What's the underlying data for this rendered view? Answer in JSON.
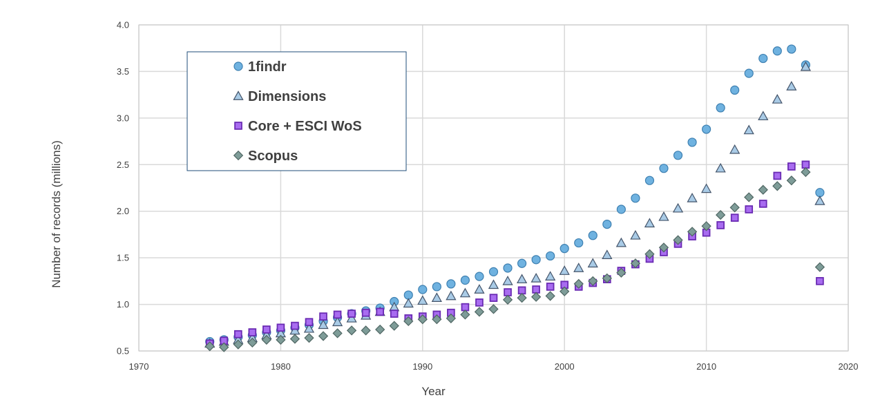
{
  "chart_data": {
    "type": "scatter",
    "xlabel": "Year",
    "ylabel": "Number of records (millions)",
    "xlim": [
      1970,
      2020
    ],
    "ylim": [
      0.5,
      4.0
    ],
    "xticks": [
      "1970",
      "1980",
      "1990",
      "2000",
      "2010",
      "2020"
    ],
    "yticks": [
      "0.5",
      "1.0",
      "1.5",
      "2.0",
      "2.5",
      "3.0",
      "3.5",
      "4.0"
    ],
    "grid": true,
    "legend_position": "top-left",
    "x": [
      1975,
      1976,
      1977,
      1978,
      1979,
      1980,
      1981,
      1982,
      1983,
      1984,
      1985,
      1986,
      1987,
      1988,
      1989,
      1990,
      1991,
      1992,
      1993,
      1994,
      1995,
      1996,
      1997,
      1998,
      1999,
      2000,
      2001,
      2002,
      2003,
      2004,
      2005,
      2006,
      2007,
      2008,
      2009,
      2010,
      2011,
      2012,
      2013,
      2014,
      2015,
      2016,
      2017,
      2018
    ],
    "series": [
      {
        "name": "1findr",
        "marker": "circle",
        "color": "#6fb2e0",
        "stroke": "#3d7fb0",
        "values": [
          0.6,
          0.62,
          0.65,
          0.67,
          0.7,
          0.72,
          0.75,
          0.78,
          0.82,
          0.86,
          0.9,
          0.93,
          0.96,
          1.03,
          1.1,
          1.16,
          1.19,
          1.22,
          1.26,
          1.3,
          1.35,
          1.39,
          1.44,
          1.48,
          1.52,
          1.6,
          1.66,
          1.74,
          1.86,
          2.02,
          2.14,
          2.33,
          2.46,
          2.6,
          2.74,
          2.88,
          3.11,
          3.3,
          3.48,
          3.64,
          3.72,
          3.74,
          3.57,
          2.2
        ]
      },
      {
        "name": "Dimensions",
        "marker": "triangle",
        "color": "#a9cbe6",
        "stroke": "#44546a",
        "values": [
          0.58,
          0.6,
          0.62,
          0.64,
          0.67,
          0.69,
          0.72,
          0.74,
          0.78,
          0.81,
          0.85,
          0.88,
          0.92,
          0.97,
          1.01,
          1.04,
          1.07,
          1.09,
          1.12,
          1.16,
          1.21,
          1.25,
          1.27,
          1.28,
          1.3,
          1.36,
          1.39,
          1.44,
          1.53,
          1.66,
          1.74,
          1.87,
          1.94,
          2.03,
          2.14,
          2.24,
          2.46,
          2.66,
          2.87,
          3.02,
          3.2,
          3.34,
          3.55,
          2.11
        ]
      },
      {
        "name": "Core + ESCI WoS",
        "marker": "square",
        "color": "#a86cf0",
        "stroke": "#6a2bb3",
        "values": [
          0.58,
          0.61,
          0.68,
          0.7,
          0.73,
          0.75,
          0.77,
          0.81,
          0.87,
          0.89,
          0.9,
          0.91,
          0.92,
          0.9,
          0.85,
          0.87,
          0.89,
          0.91,
          0.97,
          1.02,
          1.07,
          1.13,
          1.15,
          1.16,
          1.19,
          1.21,
          1.19,
          1.23,
          1.27,
          1.36,
          1.43,
          1.49,
          1.56,
          1.65,
          1.73,
          1.77,
          1.85,
          1.93,
          2.02,
          2.08,
          2.38,
          2.48,
          2.5,
          1.25
        ]
      },
      {
        "name": "Scopus",
        "marker": "diamond",
        "color": "#7e9c98",
        "stroke": "#4f6663",
        "values": [
          0.55,
          0.54,
          0.57,
          0.59,
          0.62,
          0.62,
          0.63,
          0.64,
          0.66,
          0.69,
          0.72,
          0.72,
          0.73,
          0.77,
          0.82,
          0.84,
          0.84,
          0.85,
          0.89,
          0.92,
          0.95,
          1.05,
          1.07,
          1.08,
          1.09,
          1.14,
          1.22,
          1.25,
          1.28,
          1.34,
          1.44,
          1.54,
          1.61,
          1.69,
          1.78,
          1.84,
          1.96,
          2.04,
          2.15,
          2.23,
          2.27,
          2.33,
          2.42,
          1.4
        ]
      }
    ]
  }
}
